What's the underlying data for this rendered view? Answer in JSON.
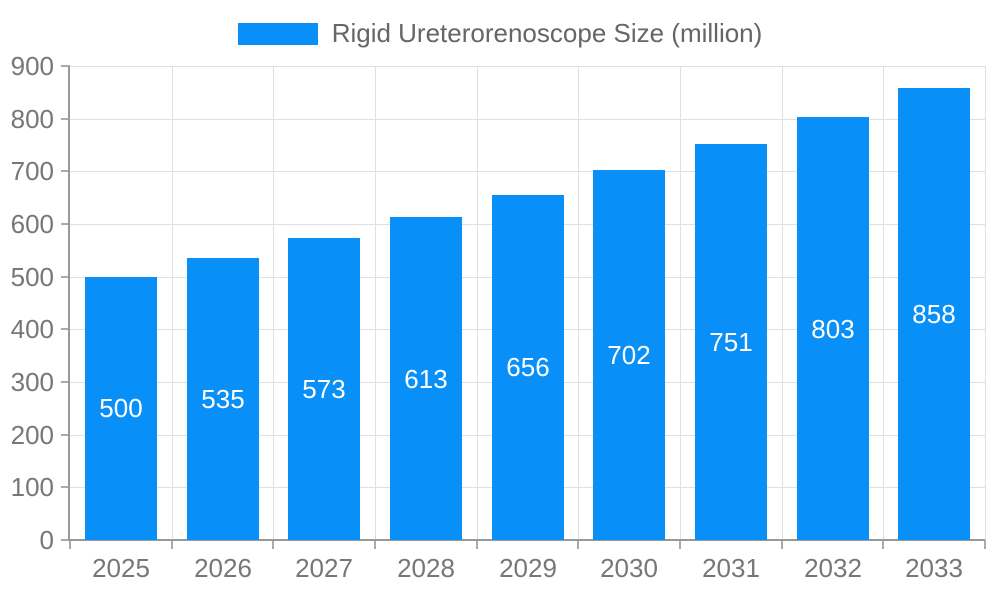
{
  "legend": {
    "label": "Rigid Ureterorenoscope Size (million)"
  },
  "colors": {
    "bar": "#0890F8",
    "grid": "#e0e0e0",
    "axis": "#999999",
    "tick": "#aaaaaa",
    "tick_text": "#777777",
    "legend_text": "#666666",
    "value_text": "#ffffff"
  },
  "chart_data": {
    "type": "bar",
    "title": "",
    "series_name": "Rigid Ureterorenoscope Size (million)",
    "categories": [
      "2025",
      "2026",
      "2027",
      "2028",
      "2029",
      "2030",
      "2031",
      "2032",
      "2033"
    ],
    "values": [
      500,
      535,
      573,
      613,
      656,
      702,
      751,
      803,
      858
    ],
    "xlabel": "",
    "ylabel": "",
    "ylim": [
      0,
      900
    ],
    "ytick_interval": 100,
    "ytick_labels": [
      "0",
      "100",
      "200",
      "300",
      "400",
      "500",
      "600",
      "700",
      "800",
      "900"
    ],
    "grid": true,
    "legend_position": "top",
    "value_labels": "centered-in-bar"
  }
}
